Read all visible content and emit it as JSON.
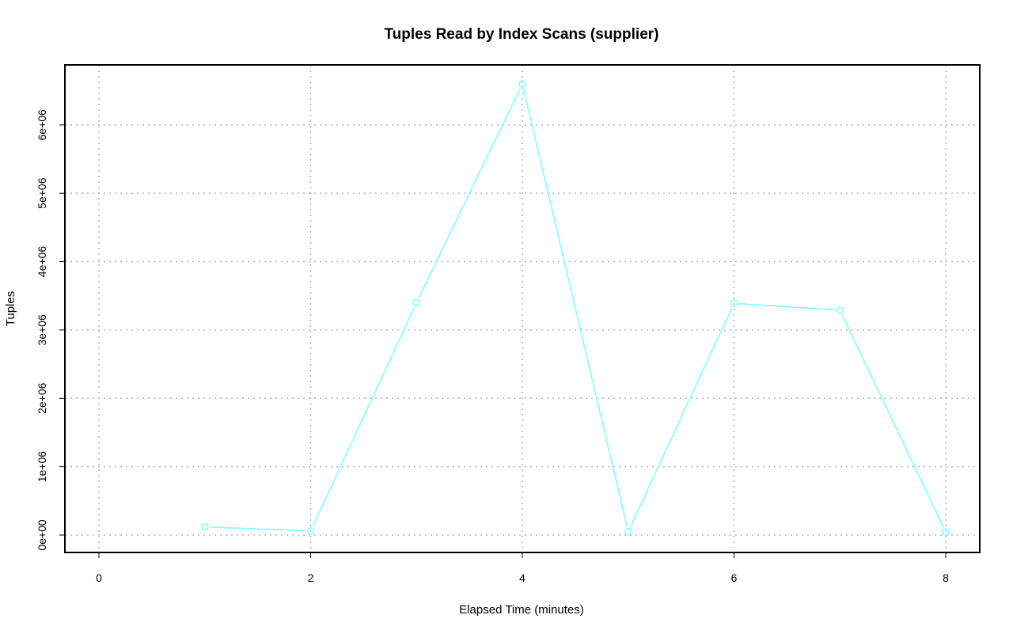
{
  "chart_data": {
    "type": "line",
    "title": "Tuples Read by Index Scans (supplier)",
    "xlabel": "Elapsed Time (minutes)",
    "ylabel": "Tuples",
    "xlim": [
      0,
      8
    ],
    "ylim": [
      0,
      6600000
    ],
    "x_ticks": [
      0,
      2,
      4,
      6,
      8
    ],
    "x_tick_labels": [
      "0",
      "2",
      "4",
      "6",
      "8"
    ],
    "y_ticks": [
      0,
      1000000,
      2000000,
      3000000,
      4000000,
      5000000,
      6000000
    ],
    "y_tick_labels": [
      "0e+00",
      "1e+06",
      "2e+06",
      "3e+06",
      "4e+06",
      "5e+06",
      "6e+06"
    ],
    "grid": true,
    "series": [
      {
        "color": "#7fffff",
        "x": [
          1,
          2,
          3,
          4,
          5,
          6,
          7,
          8
        ],
        "y": [
          120000,
          60000,
          3400000,
          6600000,
          50000,
          3390000,
          3290000,
          45000
        ]
      }
    ]
  }
}
